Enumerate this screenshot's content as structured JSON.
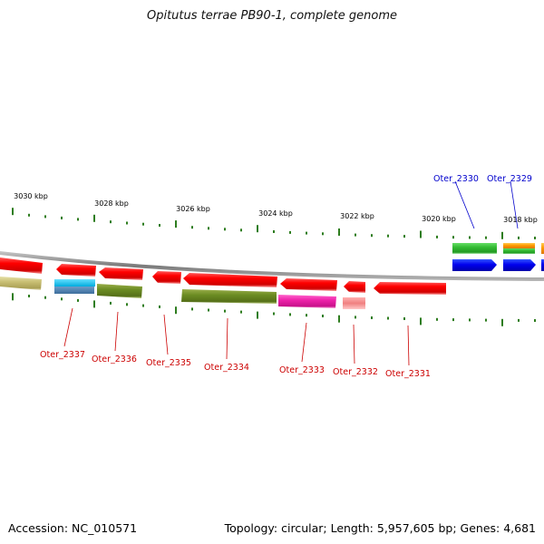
{
  "title": "Opitutus terrae PB90-1, complete genome",
  "footer": {
    "accession": "Accession: NC_010571",
    "topology": "Topology: circular; Length: 5,957,605 bp; Genes: 4,681"
  },
  "scale_labels": [
    "3030 kbp",
    "3028 kbp",
    "3026 kbp",
    "3024 kbp",
    "3022 kbp",
    "3020 kbp",
    "3018 kbp"
  ],
  "colors": {
    "backbone": "#8a8a8a",
    "tick": "#2e7d1f",
    "reverse_label": "#cc0000",
    "forward_label": "#0000cc"
  },
  "genes_forward": [
    {
      "id": "Oter_2330",
      "color": "#33bb33"
    },
    {
      "id": "Oter_2329",
      "color": "#ff9900"
    }
  ],
  "genes_reverse": [
    {
      "id": "Oter_2337",
      "color": "#ff0000"
    },
    {
      "id": "Oter_2336",
      "color": "#ff0000"
    },
    {
      "id": "Oter_2335",
      "color": "#ff0000"
    },
    {
      "id": "Oter_2334",
      "color": "#ff0000"
    },
    {
      "id": "Oter_2333",
      "color": "#ff0000"
    },
    {
      "id": "Oter_2332",
      "color": "#ff0000"
    },
    {
      "id": "Oter_2331",
      "color": "#ff0000"
    }
  ]
}
